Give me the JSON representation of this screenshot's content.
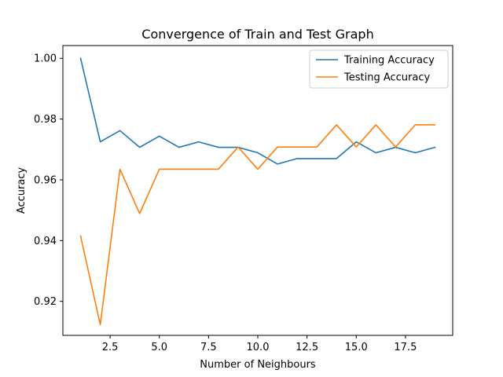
{
  "chart_data": {
    "type": "line",
    "title": "Convergence of Train and Test Graph",
    "xlabel": "Number of Neighbours",
    "ylabel": "Accuracy",
    "xlim": [
      0.1,
      19.9
    ],
    "ylim": [
      0.9088,
      1.0042
    ],
    "xticks": [
      2.5,
      5.0,
      7.5,
      10.0,
      12.5,
      15.0,
      17.5
    ],
    "xtick_labels": [
      "2.5",
      "5.0",
      "7.5",
      "10.0",
      "12.5",
      "15.0",
      "17.5"
    ],
    "yticks": [
      0.92,
      0.94,
      0.96,
      0.98,
      1.0
    ],
    "ytick_labels": [
      "0.92",
      "0.94",
      "0.96",
      "0.98",
      "1.00"
    ],
    "grid": false,
    "legend_position": "top-right",
    "x": [
      1,
      2,
      3,
      4,
      5,
      6,
      7,
      8,
      9,
      10,
      11,
      12,
      13,
      14,
      15,
      16,
      17,
      18,
      19
    ],
    "series": [
      {
        "name": "Training Accuracy",
        "color": "#1f77b4",
        "values": [
          1.0,
          0.9725,
          0.9762,
          0.9707,
          0.9744,
          0.9707,
          0.9725,
          0.9707,
          0.9707,
          0.9689,
          0.9652,
          0.967,
          0.967,
          0.967,
          0.9725,
          0.9689,
          0.9707,
          0.9689,
          0.9707
        ]
      },
      {
        "name": "Testing Accuracy",
        "color": "#ff7f0e",
        "values": [
          0.9415,
          0.9123,
          0.9635,
          0.9489,
          0.9635,
          0.9635,
          0.9635,
          0.9635,
          0.9708,
          0.9635,
          0.9708,
          0.9708,
          0.9708,
          0.9781,
          0.9708,
          0.9781,
          0.9708,
          0.9781,
          0.9781
        ]
      }
    ]
  }
}
